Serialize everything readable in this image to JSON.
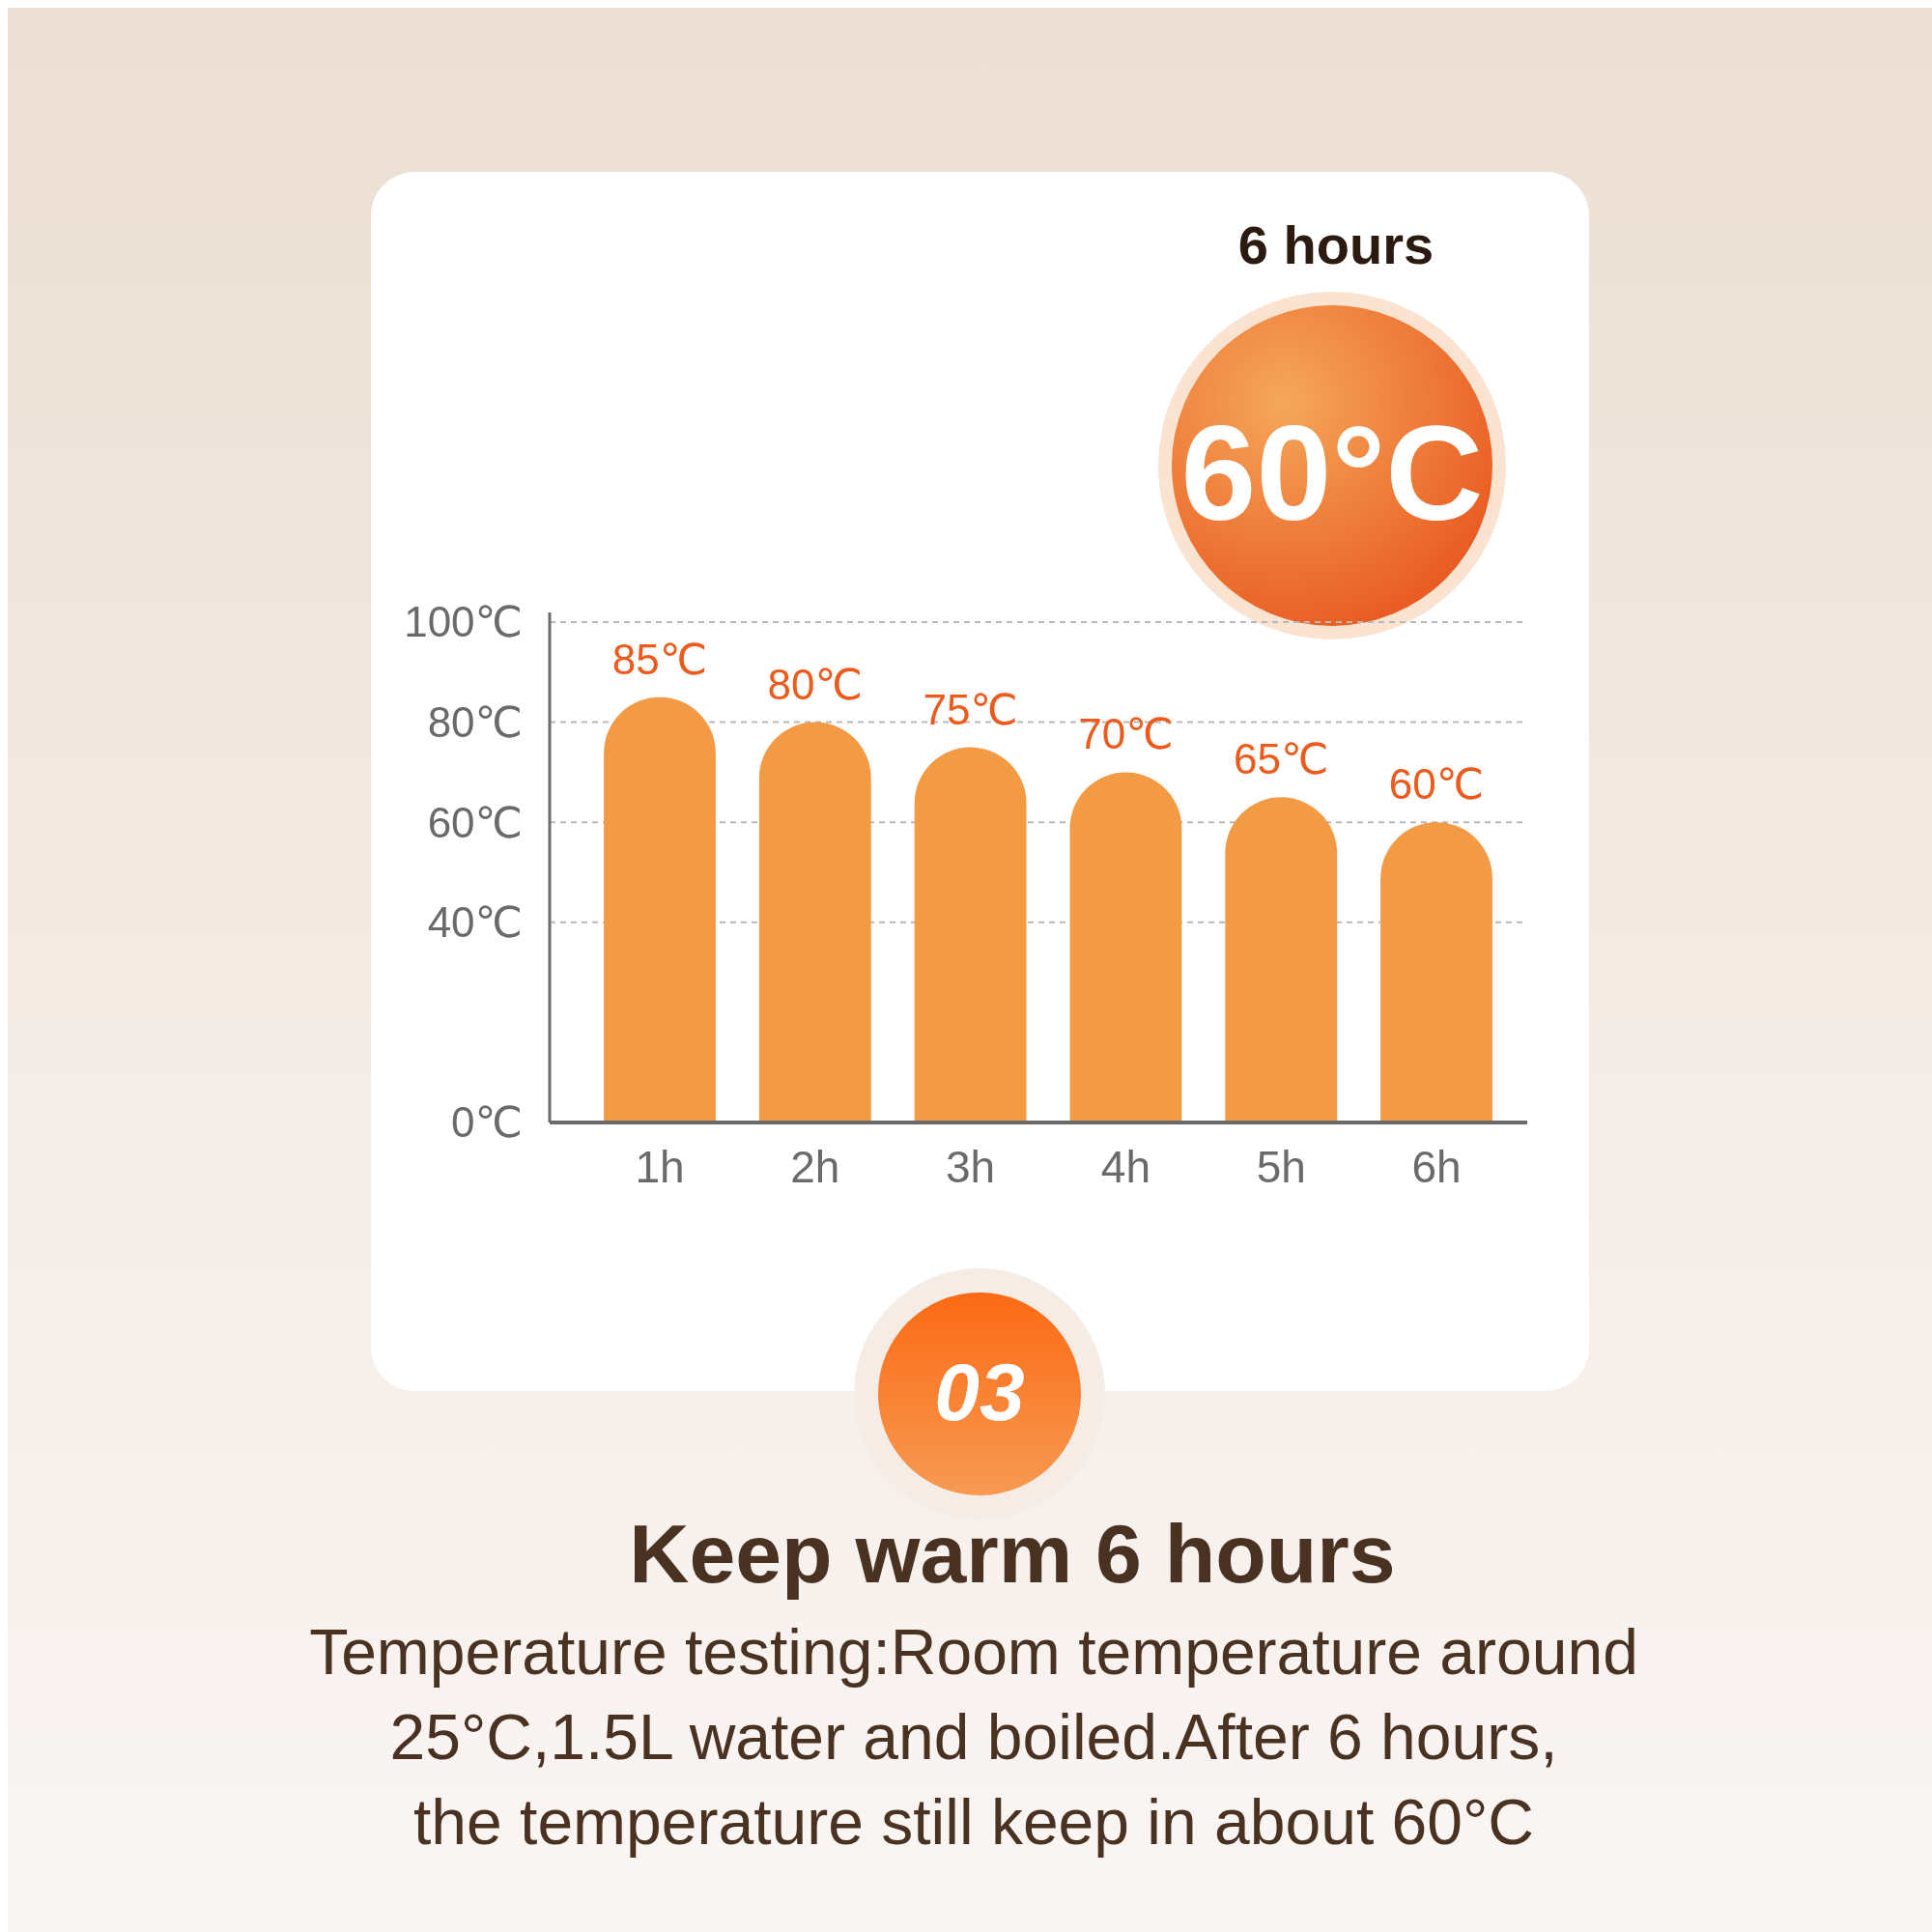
{
  "chart_data": {
    "type": "bar",
    "title": "Keep warm 6 hours",
    "subtitle": "Temperature testing:Room temperature around\n25°C,1.5L water and boiled.After 6 hours,\nthe temperature still keep in about 60°C",
    "categories": [
      "1h",
      "2h",
      "3h",
      "4h",
      "5h",
      "6h"
    ],
    "values": [
      85,
      80,
      75,
      70,
      65,
      60
    ],
    "color": "#f39a45",
    "value_labels": [
      "85℃",
      "80℃",
      "75℃",
      "70℃",
      "65℃",
      "60℃"
    ],
    "ylim": [
      0,
      100
    ],
    "yticks": [
      {
        "value": 0,
        "label": "0℃"
      },
      {
        "value": 40,
        "label": "40℃"
      },
      {
        "value": 60,
        "label": "60℃"
      },
      {
        "value": 80,
        "label": "80℃"
      },
      {
        "value": 100,
        "label": "100℃"
      }
    ],
    "grid": "y",
    "annotations": [
      "6 hours",
      "60°C",
      "03"
    ]
  }
}
